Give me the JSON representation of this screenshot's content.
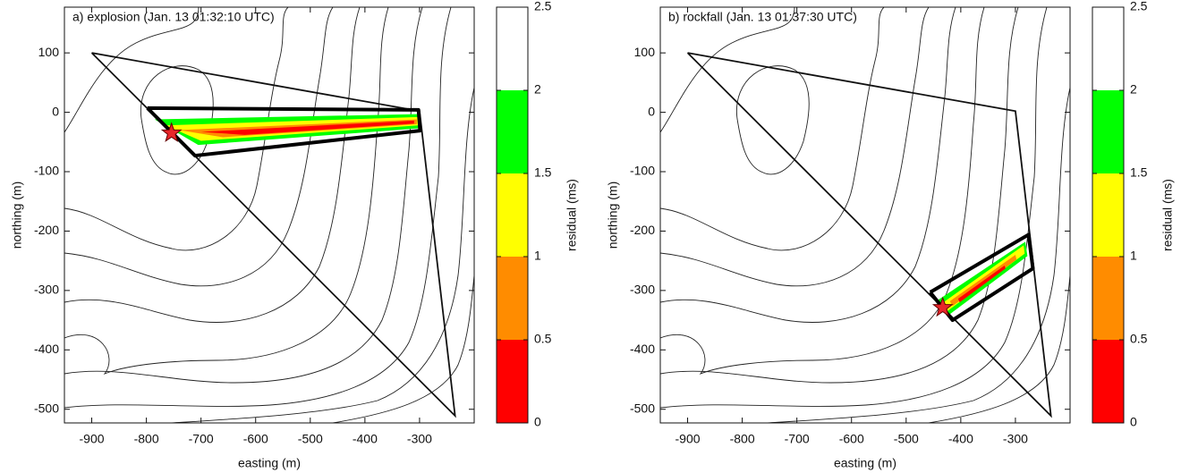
{
  "chart_data": [
    {
      "type": "map",
      "title": "a) explosion (Jan. 13 01:32:10 UTC)",
      "xlabel": "easting (m)",
      "ylabel": "northing (m)",
      "xlim": [
        -950,
        -200
      ],
      "ylim": [
        -523,
        177
      ],
      "xticks": [
        -900,
        -800,
        -700,
        -600,
        -500,
        -400,
        -300
      ],
      "yticks": [
        -500,
        -400,
        -300,
        -200,
        -100,
        0,
        100
      ],
      "array": {
        "x": [
          -900,
          -300,
          -235,
          -900
        ],
        "y": [
          100,
          2,
          -511,
          100
        ]
      },
      "zones": [
        {
          "color": "#00ff00",
          "x": [
            -785,
            -302,
            -301,
            -705
          ],
          "y": [
            -12,
            -3,
            -27,
            -55
          ]
        },
        {
          "color": "#ffff00",
          "x": [
            -765,
            -303,
            -303,
            -700
          ],
          "y": [
            -22,
            -8,
            -22,
            -48
          ]
        },
        {
          "color": "#ff8c00",
          "x": [
            -740,
            -305,
            -305,
            -660
          ],
          "y": [
            -30,
            -12,
            -20,
            -42
          ]
        },
        {
          "color": "#ff0000",
          "x": [
            -700,
            -310,
            -310,
            -620
          ],
          "y": [
            -33,
            -14,
            -19,
            -38
          ]
        }
      ],
      "outline": {
        "x": [
          -798,
          -302,
          -299,
          -711,
          -798
        ],
        "y": [
          7,
          4,
          -31,
          -73,
          7
        ]
      },
      "event": {
        "x": -754,
        "y": -35,
        "color": "#e8262a"
      },
      "colorbar": {
        "label": "residual (ms)",
        "clim": [
          0,
          2.5
        ],
        "ticks": [
          0,
          0.5,
          1,
          1.5,
          2,
          2.5
        ],
        "colors": [
          "#ff0000",
          "#ff8c00",
          "#ffff00",
          "#00ff00",
          "#ffffff"
        ]
      }
    },
    {
      "type": "map",
      "title": "b) rockfall (Jan. 13 01:37:30 UTC)",
      "xlabel": "easting (m)",
      "ylabel": "northing (m)",
      "xlim": [
        -950,
        -200
      ],
      "ylim": [
        -523,
        177
      ],
      "xticks": [
        -900,
        -800,
        -700,
        -600,
        -500,
        -400,
        -300
      ],
      "yticks": [
        -500,
        -400,
        -300,
        -200,
        -100,
        0,
        100
      ],
      "array": {
        "x": [
          -900,
          -300,
          -235,
          -900
        ],
        "y": [
          100,
          2,
          -511,
          100
        ]
      },
      "zones": [
        {
          "color": "#00ff00",
          "x": [
            -445,
            -282,
            -278,
            -420
          ],
          "y": [
            -318,
            -218,
            -242,
            -340
          ]
        },
        {
          "color": "#ffff00",
          "x": [
            -435,
            -285,
            -283,
            -425
          ],
          "y": [
            -322,
            -224,
            -238,
            -335
          ]
        },
        {
          "color": "#ff8c00",
          "x": [
            -420,
            -300,
            -298,
            -415
          ],
          "y": [
            -318,
            -240,
            -248,
            -326
          ]
        },
        {
          "color": "#ff0000",
          "x": [
            -405,
            -320,
            -318,
            -402
          ],
          "y": [
            -314,
            -258,
            -263,
            -320
          ]
        }
      ],
      "outline": {
        "x": [
          -456,
          -276,
          -268,
          -415,
          -456
        ],
        "y": [
          -303,
          -206,
          -263,
          -350,
          -303
        ]
      },
      "event": {
        "x": -433,
        "y": -329,
        "color": "#e8262a"
      },
      "colorbar": {
        "label": "residual (ms)",
        "clim": [
          0,
          2.5
        ],
        "ticks": [
          0,
          0.5,
          1,
          1.5,
          2,
          2.5
        ],
        "colors": [
          "#ff0000",
          "#ff8c00",
          "#ffff00",
          "#00ff00",
          "#ffffff"
        ]
      }
    }
  ]
}
